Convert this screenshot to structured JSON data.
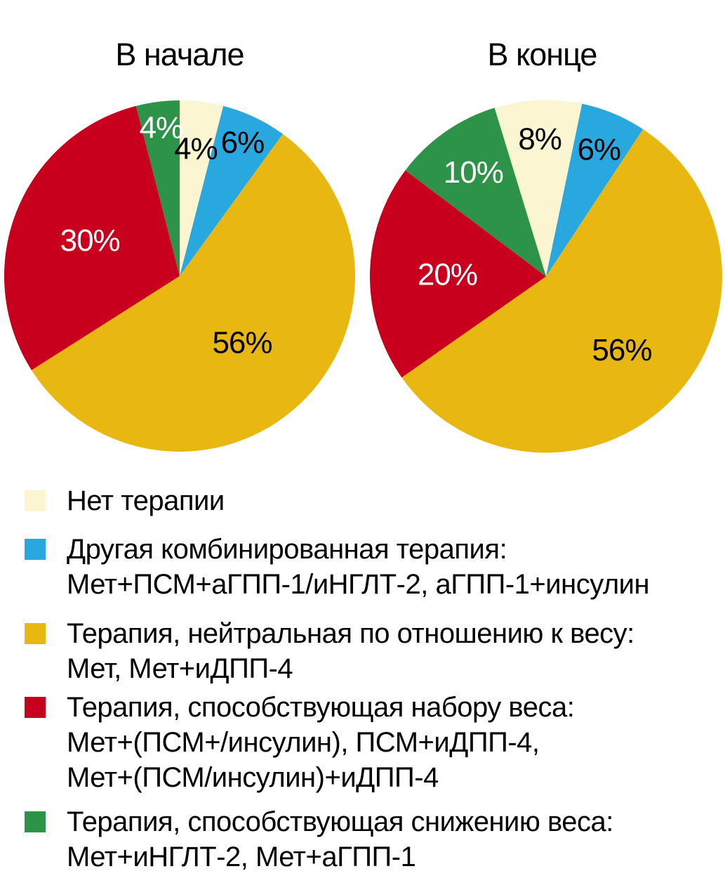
{
  "chart_data": {
    "type": "pie",
    "labels_format": "percent",
    "legend_position": "bottom-left",
    "palette": {
      "no_therapy": "#FBF5D1",
      "other_combo": "#29A8E0",
      "weight_neutral": "#E9B712",
      "weight_gain": "#C8001E",
      "weight_loss": "#2D9348"
    },
    "pies": [
      {
        "title": "В начале",
        "start_angle": 0,
        "slices": [
          {
            "category": "no_therapy",
            "value": 4,
            "label": "4%",
            "label_color": "#000000",
            "label_r": 0.73
          },
          {
            "category": "other_combo",
            "value": 6,
            "label": "6%",
            "label_color": "#000000",
            "label_r": 0.84
          },
          {
            "category": "weight_neutral",
            "value": 56,
            "label": "56%",
            "label_color": "#000000",
            "label_r": 0.52
          },
          {
            "category": "weight_gain",
            "value": 30,
            "label": "30%",
            "label_color": "#ffffff",
            "label_r": 0.55
          },
          {
            "category": "weight_loss",
            "value": 4,
            "label": "4%",
            "label_color": "#ffffff",
            "label_r": 0.85
          }
        ]
      },
      {
        "title": "В конце",
        "start_angle": -17,
        "slices": [
          {
            "category": "no_therapy",
            "value": 8,
            "label": "8%",
            "label_color": "#000000",
            "label_r": 0.78
          },
          {
            "category": "other_combo",
            "value": 6,
            "label": "6%",
            "label_color": "#000000",
            "label_r": 0.78
          },
          {
            "category": "weight_neutral",
            "value": 56,
            "label": "56%",
            "label_color": "#000000",
            "label_r": 0.6
          },
          {
            "category": "weight_gain",
            "value": 20,
            "label": "20%",
            "label_color": "#ffffff",
            "label_r": 0.56
          },
          {
            "category": "weight_loss",
            "value": 10,
            "label": "10%",
            "label_color": "#ffffff",
            "label_r": 0.72
          }
        ]
      }
    ],
    "legend": [
      {
        "category": "no_therapy",
        "lines": [
          "Нет терапии"
        ]
      },
      {
        "category": "other_combo",
        "lines": [
          "Другая комбинированная терапия:",
          "Мет+ПСМ+аГПП-1/иНГЛТ-2, аГПП-1+инсулин"
        ]
      },
      {
        "category": "weight_neutral",
        "lines": [
          "Терапия, нейтральная по отношению к весу:",
          "Мет, Мет+иДПП-4"
        ]
      },
      {
        "category": "weight_gain",
        "lines": [
          "Терапия, способствующая набору веса:",
          "Мет+(ПСМ+/инсулин), ПСМ+иДПП-4,",
          "Мет+(ПСМ/инсулин)+иДПП-4"
        ]
      },
      {
        "category": "weight_loss",
        "lines": [
          "Терапия, способствующая снижению веса:",
          "Мет+иНГЛТ-2, Мет+аГПП-1"
        ]
      }
    ]
  }
}
